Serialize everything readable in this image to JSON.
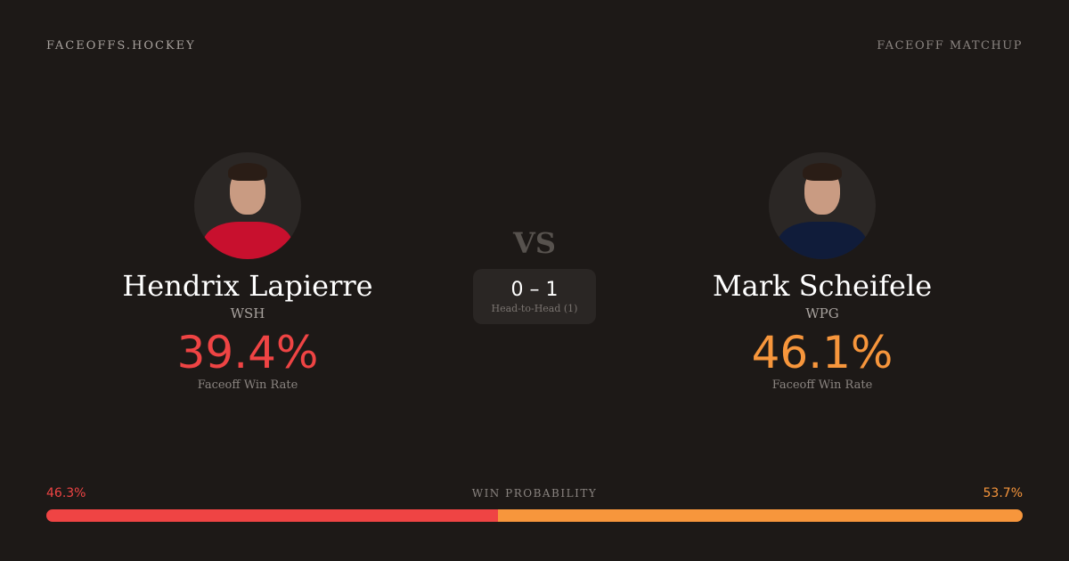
{
  "header": {
    "brand": "FACEOFFS.HOCKEY",
    "tag": "FACEOFF MATCHUP"
  },
  "players": [
    {
      "name": "Hendrix Lapierre",
      "team": "WSH",
      "win_rate": "39.4%",
      "win_rate_label": "Faceoff Win Rate",
      "color": "#ef4444",
      "jersey": "#c8102e"
    },
    {
      "name": "Mark Scheifele",
      "team": "WPG",
      "win_rate": "46.1%",
      "win_rate_label": "Faceoff Win Rate",
      "color": "#f7963c",
      "jersey": "#101c3a"
    }
  ],
  "center": {
    "vs": "VS",
    "score": "0 – 1",
    "h2h_label": "Head-to-Head (1)"
  },
  "probability": {
    "title": "WIN PROBABILITY",
    "left": "46.3%",
    "right": "53.7%",
    "left_value": 46.3,
    "right_value": 53.7
  }
}
